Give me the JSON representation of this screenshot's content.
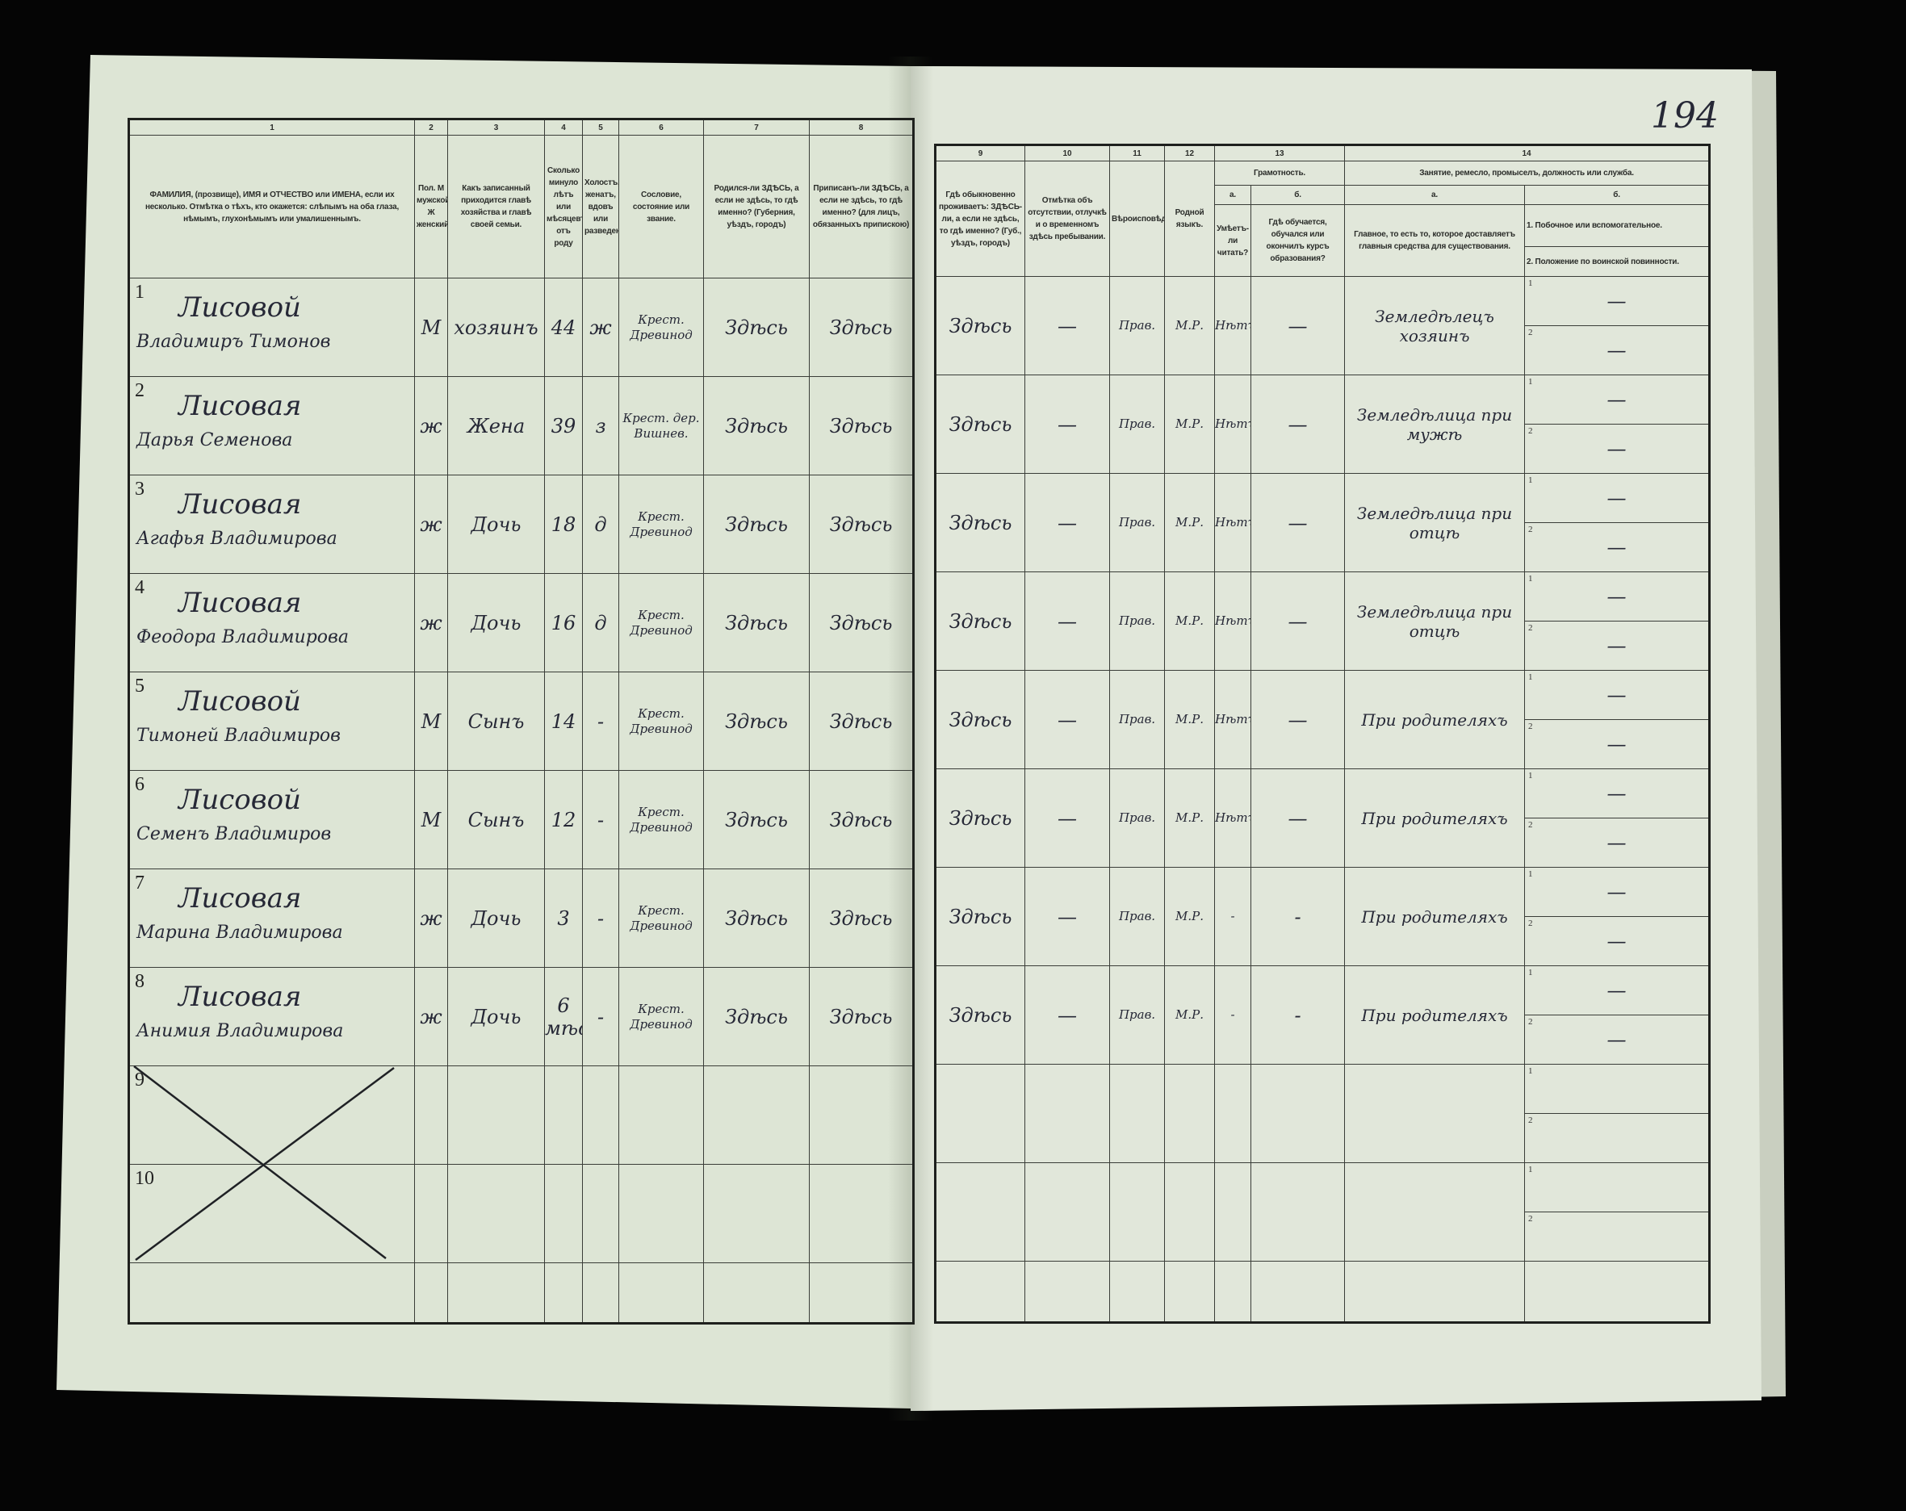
{
  "page_number": "194",
  "left_table": {
    "column_numbers": [
      "1",
      "2",
      "3",
      "4",
      "5",
      "6",
      "7",
      "8"
    ],
    "headers": [
      "ФАМИЛИЯ, (прозвище), ИМЯ и ОТЧЕСТВО или ИМЕНА, если их несколько. Отмѣтка о тѣхъ, кто окажется: слѣпымъ на оба глаза, нѣмымъ, глухонѣмымъ или умалишеннымъ.",
      "Пол. М мужской. Ж женский.",
      "Какъ записанный приходится главѣ хозяйства и главѣ своей семьи.",
      "Сколько минуло лѣтъ или мѣсяцевъ отъ роду",
      "Холостъ, женатъ, вдовъ или разведенъ.",
      "Сословие, состояние или звание.",
      "Родился-ли ЗДѢСЬ, а если не здѣсь, то гдѣ именно? (Губерния, уѣздъ, городъ)",
      "Приписанъ-ли ЗДѢСЬ, а если не здѣсь, то гдѣ именно? (для лицъ, обязанныхъ припискою)"
    ]
  },
  "right_table": {
    "column_numbers": [
      "9",
      "10",
      "11",
      "12",
      "13",
      "14"
    ],
    "headers": {
      "c9": "Гдѣ обыкновенно проживаетъ: ЗДѢСЬ-ли, а если не здѣсь, то гдѣ именно? (Губ., уѣздъ, городъ)",
      "c10": "Отмѣтка объ отсутствии, отлучкѣ и о временномъ здѣсь пребывании.",
      "c11": "Вѣроисповѣдание.",
      "c12": "Родной языкъ.",
      "c13": "Грамотность.",
      "c13a_letter": "а.",
      "c13b_letter": "б.",
      "c13a": "Умѣетъ-ли читать?",
      "c13b": "Гдѣ обучается, обучался или окончилъ курсъ образования?",
      "c14": "Занятие, ремесло, промыселъ, должность или служба.",
      "c14a_letter": "а.",
      "c14b_letter": "б.",
      "c14a": "Главное, то есть то, которое доставляетъ главныя средства для существования.",
      "c14b1": "1. Побочное или вспомогательное.",
      "c14b2": "2. Положение по воинской повинности."
    }
  },
  "rows": [
    {
      "num": "1",
      "surname": "Лисовой",
      "given": "Владимиръ Тимонов",
      "sex": "М",
      "relation": "хозяинъ",
      "age": "44",
      "marital": "ж",
      "estate": "Крест. Древинод",
      "born": "Здѣсь",
      "registered": "Здѣсь",
      "resides": "Здѣсь",
      "absence": "—",
      "religion": "Прав.",
      "language": "М.Р.",
      "literate": "Нѣтъ",
      "education": "—",
      "occupation": "Земледѣлецъ хозяинъ",
      "side": "—",
      "military": "—"
    },
    {
      "num": "2",
      "surname": "Лисовая",
      "given": "Дарья Семенова",
      "sex": "ж",
      "relation": "Жена",
      "age": "39",
      "marital": "з",
      "estate": "Крест. дер. Вишнев.",
      "born": "Здѣсь",
      "registered": "Здѣсь",
      "resides": "Здѣсь",
      "absence": "—",
      "religion": "Прав.",
      "language": "М.Р.",
      "literate": "Нѣтъ",
      "education": "—",
      "occupation": "Земледѣлица при мужѣ",
      "side": "—",
      "military": "—"
    },
    {
      "num": "3",
      "surname": "Лисовая",
      "given": "Агафья Владимирова",
      "sex": "ж",
      "relation": "Дочь",
      "age": "18",
      "marital": "д",
      "estate": "Крест. Древинод",
      "born": "Здѣсь",
      "registered": "Здѣсь",
      "resides": "Здѣсь",
      "absence": "—",
      "religion": "Прав.",
      "language": "М.Р.",
      "literate": "Нѣтъ",
      "education": "—",
      "occupation": "Земледѣлица при отцѣ",
      "side": "—",
      "military": "—"
    },
    {
      "num": "4",
      "surname": "Лисовая",
      "given": "Феодора Владимирова",
      "sex": "ж",
      "relation": "Дочь",
      "age": "16",
      "marital": "д",
      "estate": "Крест. Древинод",
      "born": "Здѣсь",
      "registered": "Здѣсь",
      "resides": "Здѣсь",
      "absence": "—",
      "religion": "Прав.",
      "language": "М.Р.",
      "literate": "Нѣтъ",
      "education": "—",
      "occupation": "Земледѣлица при отцѣ",
      "side": "—",
      "military": "—"
    },
    {
      "num": "5",
      "surname": "Лисовой",
      "given": "Тимоней Владимиров",
      "sex": "М",
      "relation": "Сынъ",
      "age": "14",
      "marital": "-",
      "estate": "Крест. Древинод",
      "born": "Здѣсь",
      "registered": "Здѣсь",
      "resides": "Здѣсь",
      "absence": "—",
      "religion": "Прав.",
      "language": "М.Р.",
      "literate": "Нѣтъ",
      "education": "—",
      "occupation": "При родителяхъ",
      "side": "—",
      "military": "—"
    },
    {
      "num": "6",
      "surname": "Лисовой",
      "given": "Семенъ Владимиров",
      "sex": "М",
      "relation": "Сынъ",
      "age": "12",
      "marital": "-",
      "estate": "Крест. Древинод",
      "born": "Здѣсь",
      "registered": "Здѣсь",
      "resides": "Здѣсь",
      "absence": "—",
      "religion": "Прав.",
      "language": "М.Р.",
      "literate": "Нѣтъ",
      "education": "—",
      "occupation": "При родителяхъ",
      "side": "—",
      "military": "—"
    },
    {
      "num": "7",
      "surname": "Лисовая",
      "given": "Марина Владимирова",
      "sex": "ж",
      "relation": "Дочь",
      "age": "3",
      "marital": "-",
      "estate": "Крест. Древинод",
      "born": "Здѣсь",
      "registered": "Здѣсь",
      "resides": "Здѣсь",
      "absence": "—",
      "religion": "Прав.",
      "language": "М.Р.",
      "literate": "-",
      "education": "-",
      "occupation": "При родителяхъ",
      "side": "—",
      "military": "—"
    },
    {
      "num": "8",
      "surname": "Лисовая",
      "given": "Анимия Владимирова",
      "sex": "ж",
      "relation": "Дочь",
      "age": "6 мѣс.",
      "marital": "-",
      "estate": "Крест. Древинод",
      "born": "Здѣсь",
      "registered": "Здѣсь",
      "resides": "Здѣсь",
      "absence": "—",
      "religion": "Прав.",
      "language": "М.Р.",
      "literate": "-",
      "education": "-",
      "occupation": "При родителяхъ",
      "side": "—",
      "military": "—"
    },
    {
      "num": "9"
    },
    {
      "num": "10"
    }
  ],
  "sub_numbers": [
    "1",
    "2"
  ]
}
